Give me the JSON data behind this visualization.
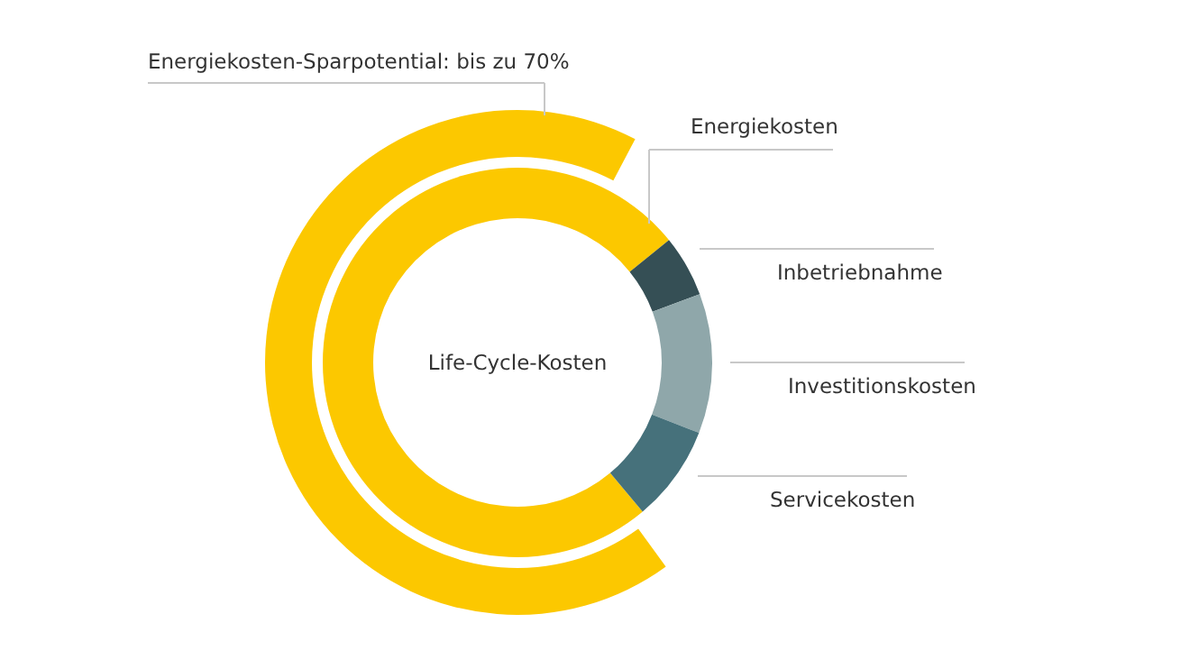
{
  "chart_data": {
    "type": "donut",
    "categories": [
      "Energiekosten",
      "Inbetriebnahme",
      "Investitionskosten",
      "Servicekosten"
    ],
    "values": [
      75.3,
      5.1,
      11.6,
      8.0
    ],
    "colors": [
      "#fcc800",
      "#354f55",
      "#8fa7aa",
      "#46717b"
    ],
    "annotations": [
      "Life-Cycle-Kosten",
      "Energiekosten-Sparpotential: bis zu 70%"
    ]
  }
}
